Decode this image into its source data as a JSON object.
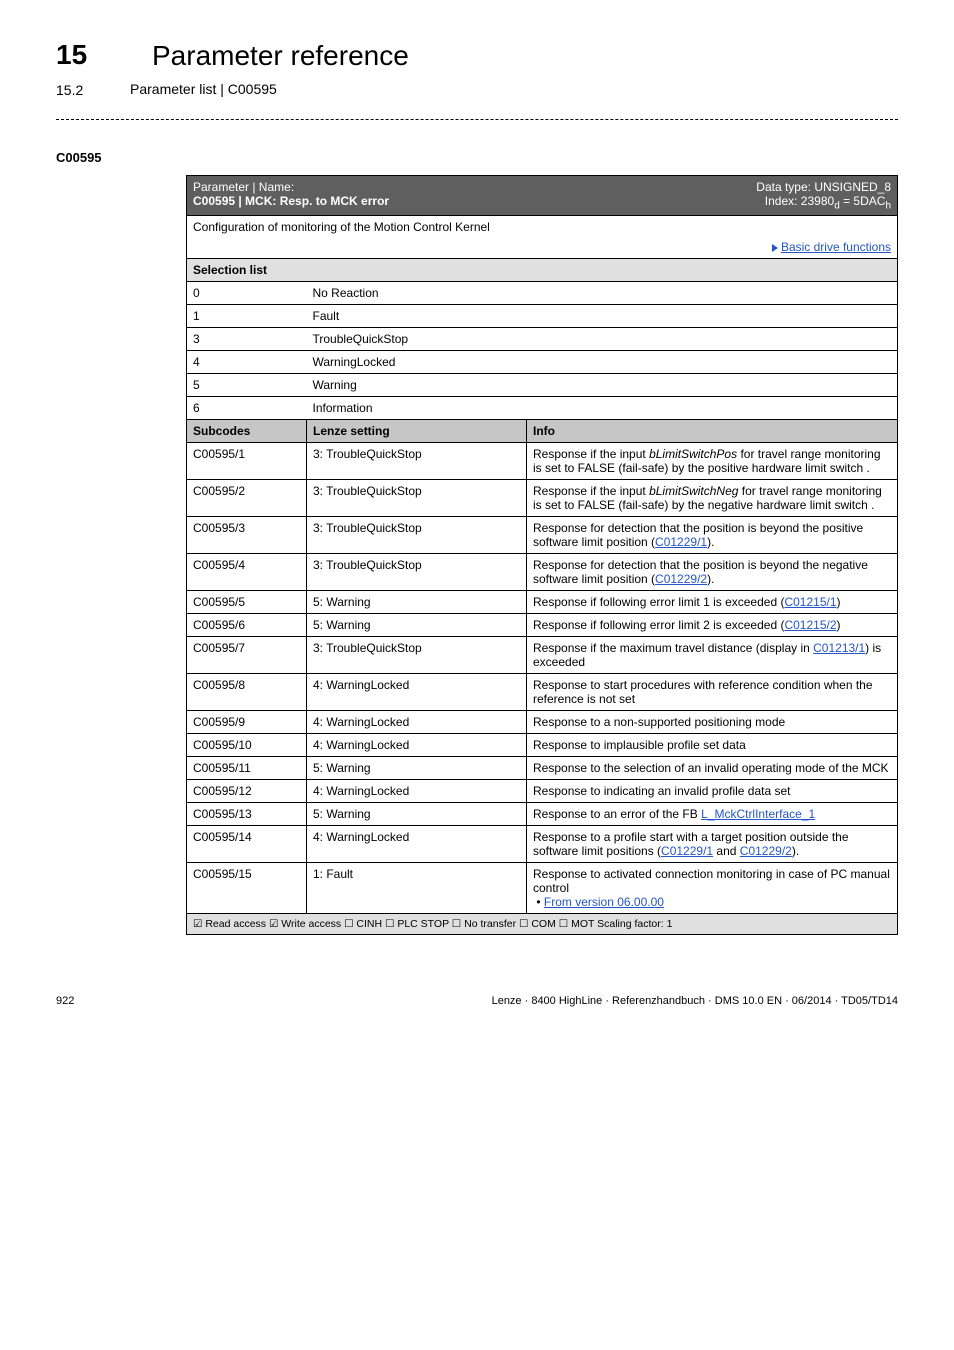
{
  "header": {
    "chapter_num": "15",
    "chapter_title": "Parameter reference",
    "section_num": "15.2",
    "section_title": "Parameter list | C00595"
  },
  "param_code": "C00595",
  "table": {
    "meta": {
      "left_label": "Parameter | Name:",
      "title": "C00595 | MCK: Resp. to MCK error",
      "datatype": "Data type: UNSIGNED_8",
      "index": "Index: 23980",
      "index_sub": "d",
      "index_eq": " = 5DAC",
      "index_sub2": "h"
    },
    "config_text": "Configuration of monitoring of the Motion Control Kernel",
    "basic_link": "Basic drive functions",
    "selection_header": "Selection list",
    "selections": [
      {
        "n": "0",
        "label": "No Reaction"
      },
      {
        "n": "1",
        "label": "Fault"
      },
      {
        "n": "3",
        "label": "TroubleQuickStop"
      },
      {
        "n": "4",
        "label": "WarningLocked"
      },
      {
        "n": "5",
        "label": "Warning"
      },
      {
        "n": "6",
        "label": "Information"
      }
    ],
    "sub_header": {
      "c1": "Subcodes",
      "c2": "Lenze setting",
      "c3": "Info"
    },
    "rows": [
      {
        "code": "C00595/1",
        "setting": "3: TroubleQuickStop",
        "info_pre": "Response if the input ",
        "info_em": "bLimitSwitchPos",
        "info_post": " for travel range monitoring is set to FALSE (fail-safe) by the positive hardware limit switch ."
      },
      {
        "code": "C00595/2",
        "setting": "3: TroubleQuickStop",
        "info_pre": "Response if the input ",
        "info_em": "bLimitSwitchNeg",
        "info_post": " for travel range monitoring is set to FALSE (fail-safe) by the negative hardware limit switch ."
      },
      {
        "code": "C00595/3",
        "setting": "3: TroubleQuickStop",
        "info_pre": "Response for detection that the position is beyond the positive software limit position (",
        "info_link": "C01229/1",
        "info_post2": ")."
      },
      {
        "code": "C00595/4",
        "setting": "3: TroubleQuickStop",
        "info_pre": "Response for detection that the position is beyond the negative software limit position (",
        "info_link": "C01229/2",
        "info_post2": ")."
      },
      {
        "code": "C00595/5",
        "setting": "5: Warning",
        "info_pre": "Response if following error limit 1 is exceeded (",
        "info_link": "C01215/1",
        "info_post2": ")"
      },
      {
        "code": "C00595/6",
        "setting": "5: Warning",
        "info_pre": "Response if following error limit 2 is exceeded (",
        "info_link": "C01215/2",
        "info_post2": ")"
      },
      {
        "code": "C00595/7",
        "setting": "3: TroubleQuickStop",
        "info_pre": "Response if the maximum travel distance (display in ",
        "info_link": "C01213/1",
        "info_post2": ") is exceeded"
      },
      {
        "code": "C00595/8",
        "setting": "4: WarningLocked",
        "info_plain": "Response to start procedures with reference condition when the reference is not set"
      },
      {
        "code": "C00595/9",
        "setting": "4: WarningLocked",
        "info_plain": "Response to a non-supported positioning mode"
      },
      {
        "code": "C00595/10",
        "setting": "4: WarningLocked",
        "info_plain": "Response to implausible profile set data"
      },
      {
        "code": "C00595/11",
        "setting": "5: Warning",
        "info_plain": "Response to the selection of an invalid operating mode of the MCK"
      },
      {
        "code": "C00595/12",
        "setting": "4: WarningLocked",
        "info_plain": "Response to indicating an invalid profile data set"
      },
      {
        "code": "C00595/13",
        "setting": "5: Warning",
        "info_pre": "Response to an error of the FB ",
        "info_link": "L_MckCtrlInterface_1"
      },
      {
        "code": "C00595/14",
        "setting": "4: WarningLocked",
        "info_pre": "Response to a profile start with a target position outside the software limit positions (",
        "info_link": "C01229/1",
        "info_mid": " and ",
        "info_link2": "C01229/2",
        "info_post2": ")."
      },
      {
        "code": "C00595/15",
        "setting": "1: Fault",
        "info_plain": "Response to activated connection monitoring in case of PC manual control",
        "info_bullet_link": "From version 06.00.00"
      }
    ],
    "checks": "☑ Read access   ☑ Write access   ☐ CINH   ☐ PLC STOP   ☐ No transfer   ☐ COM   ☐ MOT    Scaling factor: 1"
  },
  "footer": {
    "page": "922",
    "right": "Lenze · 8400 HighLine · Referenzhandbuch · DMS 10.0 EN · 06/2014 · TD05/TD14"
  }
}
